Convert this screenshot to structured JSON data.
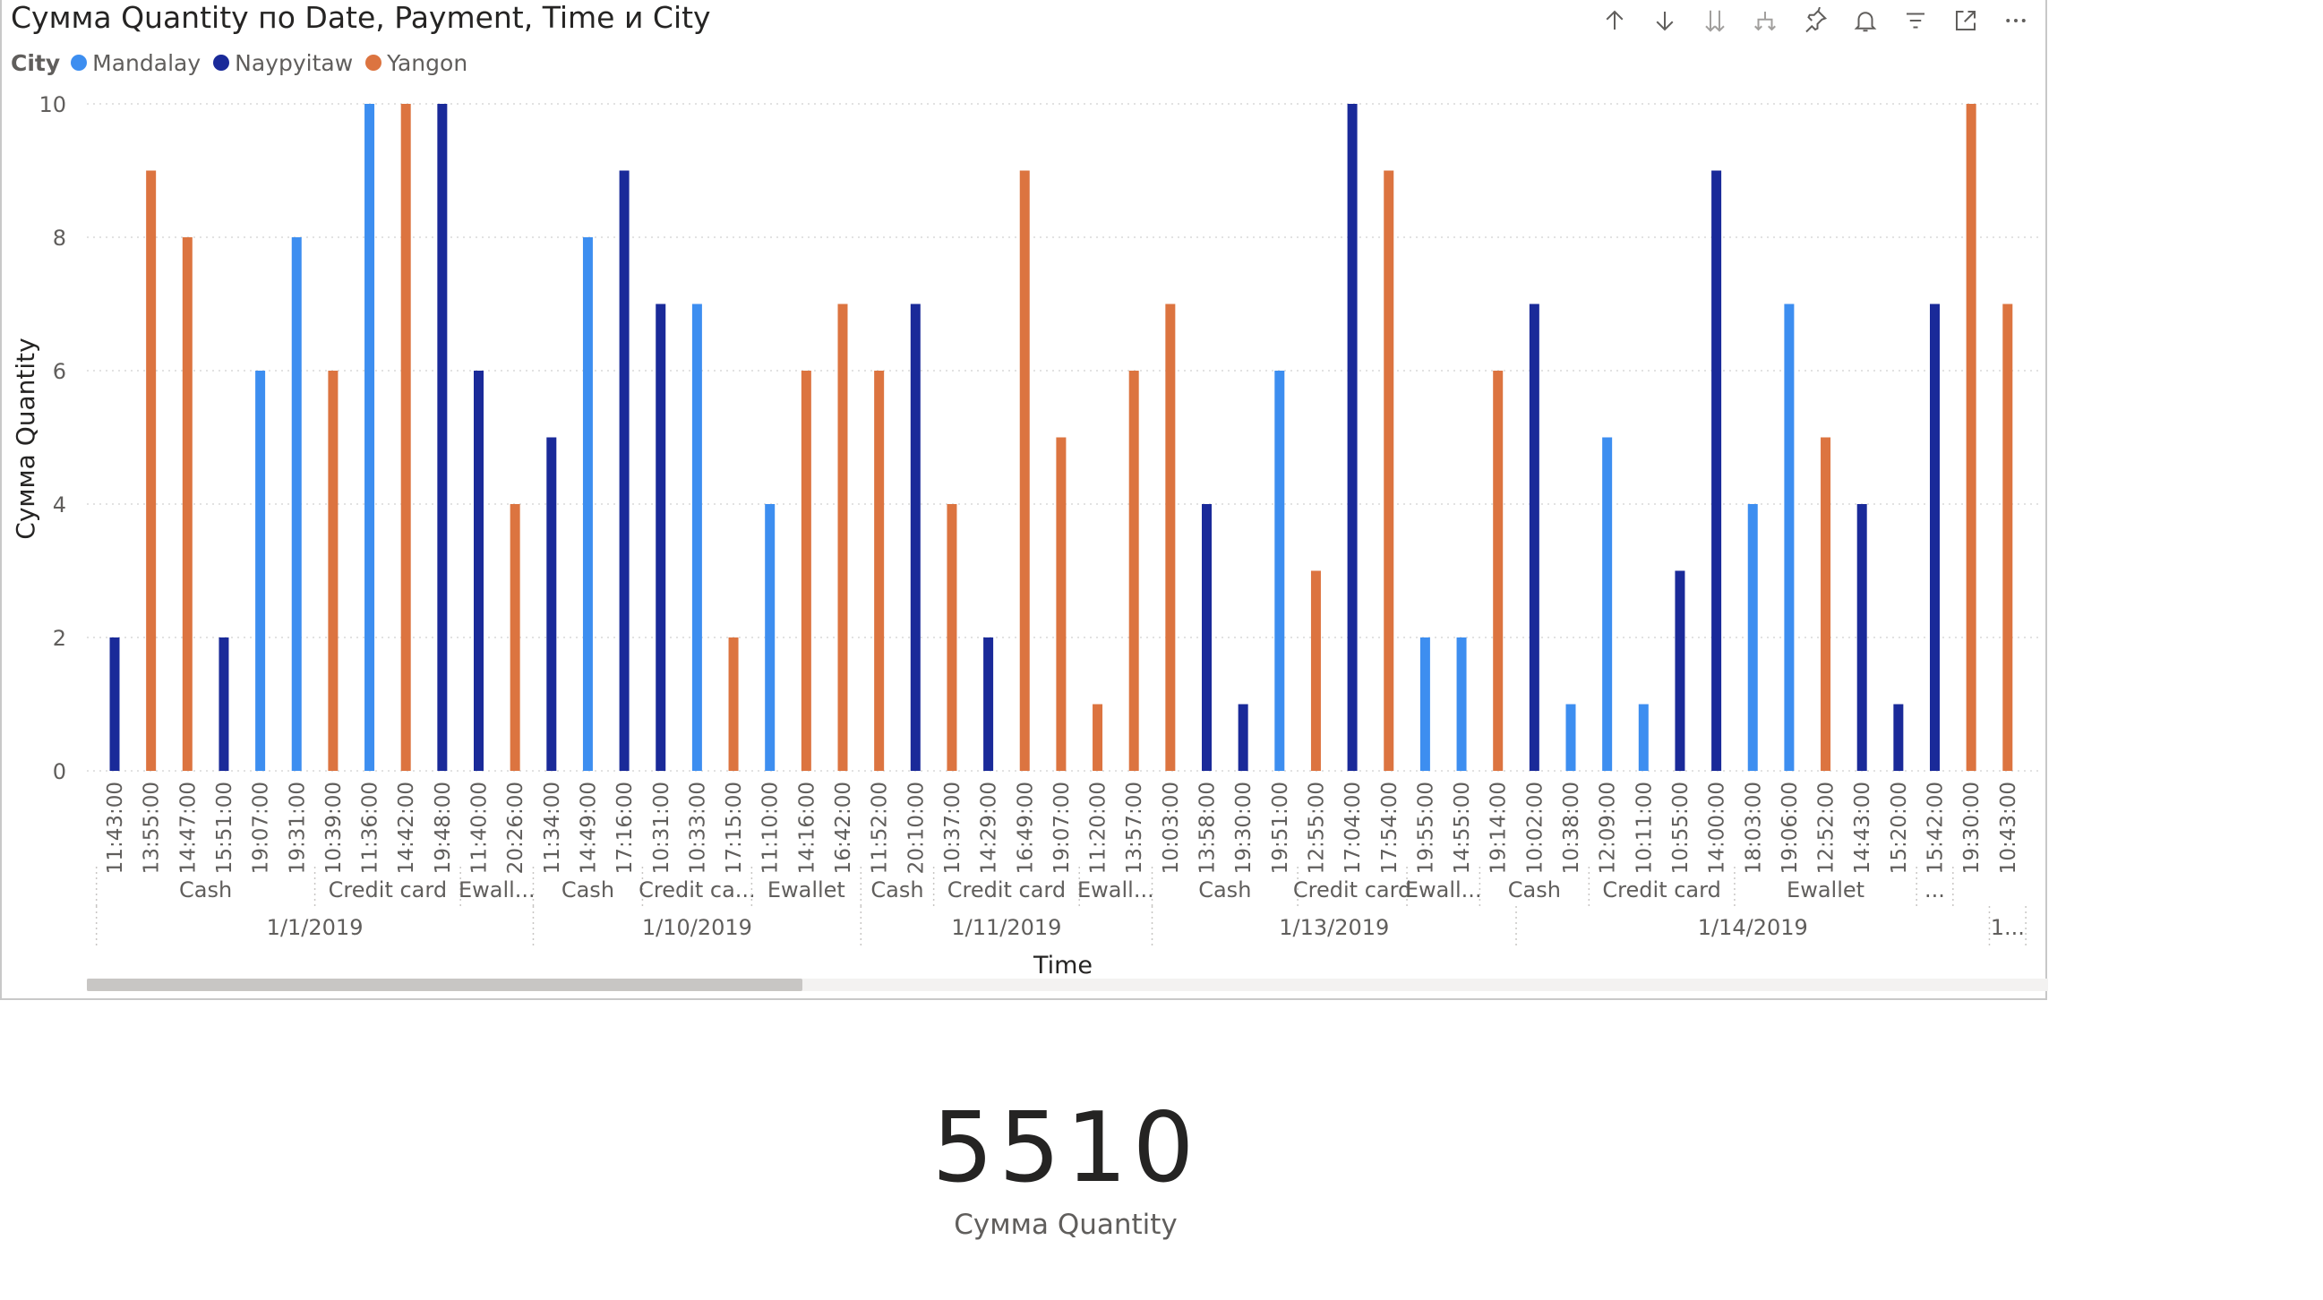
{
  "visual": {
    "title": "Сумма Quantity по Date, Payment, Time и City",
    "legend_title": "City",
    "xaxis_title": "Time",
    "yaxis_title": "Сумма Quantity"
  },
  "toolbar": [
    {
      "name": "drill-up-icon"
    },
    {
      "name": "drill-down-icon"
    },
    {
      "name": "expand-all-down-icon"
    },
    {
      "name": "drill-hierarchy-icon"
    },
    {
      "name": "pin-icon"
    },
    {
      "name": "alert-bell-icon"
    },
    {
      "name": "filter-icon"
    },
    {
      "name": "focus-mode-icon"
    },
    {
      "name": "more-options-icon"
    }
  ],
  "colors": {
    "Mandalay": "#3d8ef0",
    "Naypyitaw": "#1a2a99",
    "Yangon": "#dc7440"
  },
  "chart_data": {
    "type": "bar",
    "ylim": [
      0,
      10
    ],
    "yticks": [
      0,
      2,
      4,
      6,
      8,
      10
    ],
    "grid": true,
    "legend": [
      "Mandalay",
      "Naypyitaw",
      "Yangon"
    ],
    "legend_position": "top-left",
    "categories": [
      "11:43:00",
      "13:55:00",
      "14:47:00",
      "15:51:00",
      "19:07:00",
      "19:31:00",
      "10:39:00",
      "11:36:00",
      "14:42:00",
      "19:48:00",
      "11:40:00",
      "20:26:00",
      "11:34:00",
      "14:49:00",
      "17:16:00",
      "10:31:00",
      "10:33:00",
      "17:15:00",
      "11:10:00",
      "14:16:00",
      "16:42:00",
      "11:52:00",
      "20:10:00",
      "10:37:00",
      "14:29:00",
      "16:49:00",
      "19:07:00",
      "11:20:00",
      "13:57:00",
      "10:03:00",
      "13:58:00",
      "19:30:00",
      "19:51:00",
      "12:55:00",
      "17:04:00",
      "17:54:00",
      "19:55:00",
      "14:55:00",
      "19:14:00",
      "10:02:00",
      "10:38:00",
      "12:09:00",
      "10:11:00",
      "10:55:00",
      "14:00:00",
      "18:03:00",
      "19:06:00",
      "12:52:00",
      "14:43:00",
      "15:20:00",
      "15:42:00",
      "19:30:00",
      "10:43:00"
    ],
    "bars": [
      {
        "city": "Naypyitaw",
        "value": 2
      },
      {
        "city": "Yangon",
        "value": 9
      },
      {
        "city": "Yangon",
        "value": 8
      },
      {
        "city": "Naypyitaw",
        "value": 2
      },
      {
        "city": "Mandalay",
        "value": 6
      },
      {
        "city": "Mandalay",
        "value": 8
      },
      {
        "city": "Yangon",
        "value": 6
      },
      {
        "city": "Mandalay",
        "value": 10
      },
      {
        "city": "Yangon",
        "value": 10
      },
      {
        "city": "Naypyitaw",
        "value": 10
      },
      {
        "city": "Naypyitaw",
        "value": 6
      },
      {
        "city": "Yangon",
        "value": 4
      },
      {
        "city": "Naypyitaw",
        "value": 5
      },
      {
        "city": "Mandalay",
        "value": 8
      },
      {
        "city": "Naypyitaw",
        "value": 9
      },
      {
        "city": "Naypyitaw",
        "value": 7
      },
      {
        "city": "Mandalay",
        "value": 7
      },
      {
        "city": "Yangon",
        "value": 2
      },
      {
        "city": "Mandalay",
        "value": 4
      },
      {
        "city": "Yangon",
        "value": 6
      },
      {
        "city": "Yangon",
        "value": 7
      },
      {
        "city": "Yangon",
        "value": 6
      },
      {
        "city": "Naypyitaw",
        "value": 7
      },
      {
        "city": "Yangon",
        "value": 4
      },
      {
        "city": "Naypyitaw",
        "value": 2
      },
      {
        "city": "Yangon",
        "value": 9
      },
      {
        "city": "Yangon",
        "value": 5
      },
      {
        "city": "Yangon",
        "value": 1
      },
      {
        "city": "Yangon",
        "value": 6
      },
      {
        "city": "Yangon",
        "value": 7
      },
      {
        "city": "Naypyitaw",
        "value": 4
      },
      {
        "city": "Naypyitaw",
        "value": 1
      },
      {
        "city": "Mandalay",
        "value": 6
      },
      {
        "city": "Yangon",
        "value": 3
      },
      {
        "city": "Naypyitaw",
        "value": 10
      },
      {
        "city": "Yangon",
        "value": 9
      },
      {
        "city": "Mandalay",
        "value": 2
      },
      {
        "city": "Mandalay",
        "value": 2
      },
      {
        "city": "Yangon",
        "value": 6
      },
      {
        "city": "Naypyitaw",
        "value": 7
      },
      {
        "city": "Mandalay",
        "value": 1
      },
      {
        "city": "Mandalay",
        "value": 5
      },
      {
        "city": "Mandalay",
        "value": 1
      },
      {
        "city": "Naypyitaw",
        "value": 3
      },
      {
        "city": "Naypyitaw",
        "value": 9
      },
      {
        "city": "Mandalay",
        "value": 4
      },
      {
        "city": "Mandalay",
        "value": 7
      },
      {
        "city": "Yangon",
        "value": 5
      },
      {
        "city": "Naypyitaw",
        "value": 4
      },
      {
        "city": "Naypyitaw",
        "value": 1
      },
      {
        "city": "Naypyitaw",
        "value": 7
      },
      {
        "city": "Yangon",
        "value": 10
      },
      {
        "city": "Yangon",
        "value": 7
      }
    ],
    "payment_groups": [
      {
        "label": "Cash",
        "count": 6
      },
      {
        "label": "Credit card",
        "count": 4
      },
      {
        "label": "Ewall...",
        "count": 2
      },
      {
        "label": "Cash",
        "count": 3
      },
      {
        "label": "Credit ca...",
        "count": 3
      },
      {
        "label": "Ewallet",
        "count": 3
      },
      {
        "label": "Cash",
        "count": 2
      },
      {
        "label": "Credit card",
        "count": 4
      },
      {
        "label": "Ewall...",
        "count": 2
      },
      {
        "label": "Cash",
        "count": 4
      },
      {
        "label": "Credit card",
        "count": 3
      },
      {
        "label": "Ewall...",
        "count": 2
      },
      {
        "label": "Cash",
        "count": 3
      },
      {
        "label": "Credit card",
        "count": 4
      },
      {
        "label": "Ewallet",
        "count": 5
      },
      {
        "label": "...",
        "count": 1
      }
    ],
    "date_groups": [
      {
        "label": "1/1/2019",
        "count": 12
      },
      {
        "label": "1/10/2019",
        "count": 9
      },
      {
        "label": "1/11/2019",
        "count": 8
      },
      {
        "label": "1/13/2019",
        "count": 10
      },
      {
        "label": "1/14/2019",
        "count": 13
      },
      {
        "label": "1...",
        "count": 1
      }
    ]
  },
  "scroll": {
    "position_fraction": 0.0,
    "visible_fraction": 0.365
  },
  "kpi": {
    "value": "5510",
    "label": "Сумма Quantity"
  }
}
